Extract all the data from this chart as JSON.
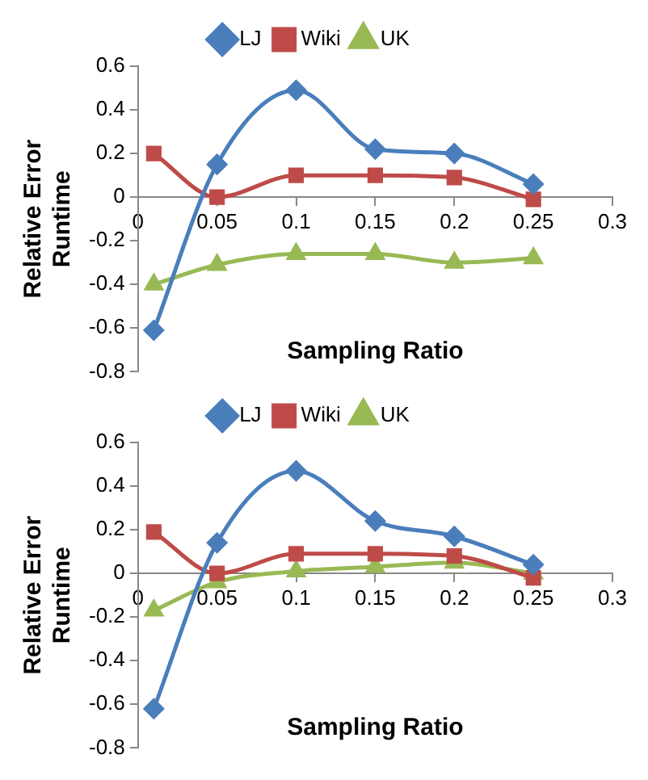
{
  "chart_data": [
    {
      "type": "line",
      "xlabel": "Sampling Ratio",
      "ylabel": "Relative Error\nRuntime",
      "x": [
        0.01,
        0.05,
        0.1,
        0.15,
        0.2,
        0.25
      ],
      "xlim": [
        0,
        0.3
      ],
      "xticks": [
        0,
        0.05,
        0.1,
        0.15,
        0.2,
        0.25,
        0.3
      ],
      "ylim": [
        -0.8,
        0.6
      ],
      "yticks": [
        -0.8,
        -0.6,
        -0.4,
        -0.2,
        0,
        0.2,
        0.4,
        0.6
      ],
      "grid": false,
      "legend": "top",
      "series": [
        {
          "name": "LJ",
          "color": "#4a7ebb",
          "marker": "diamond",
          "values": [
            -0.61,
            0.15,
            0.49,
            0.22,
            0.2,
            0.06
          ]
        },
        {
          "name": "Wiki",
          "color": "#be4b48",
          "marker": "square",
          "values": [
            0.2,
            0.0,
            0.1,
            0.1,
            0.09,
            -0.01
          ]
        },
        {
          "name": "UK",
          "color": "#98b954",
          "marker": "triangle",
          "values": [
            -0.4,
            -0.31,
            -0.26,
            -0.26,
            -0.3,
            -0.28
          ]
        }
      ]
    },
    {
      "type": "line",
      "xlabel": "Sampling Ratio",
      "ylabel": "Relative Error\nRuntime",
      "x": [
        0.01,
        0.05,
        0.1,
        0.15,
        0.2,
        0.25
      ],
      "xlim": [
        0,
        0.3
      ],
      "xticks": [
        0,
        0.05,
        0.1,
        0.15,
        0.2,
        0.25,
        0.3
      ],
      "ylim": [
        -0.8,
        0.6
      ],
      "yticks": [
        -0.8,
        -0.6,
        -0.4,
        -0.2,
        0,
        0.2,
        0.4,
        0.6
      ],
      "grid": false,
      "legend": "top",
      "series": [
        {
          "name": "LJ",
          "color": "#4a7ebb",
          "marker": "diamond",
          "values": [
            -0.62,
            0.14,
            0.47,
            0.24,
            0.17,
            0.04
          ]
        },
        {
          "name": "Wiki",
          "color": "#be4b48",
          "marker": "square",
          "values": [
            0.19,
            0.0,
            0.09,
            0.09,
            0.08,
            -0.02
          ]
        },
        {
          "name": "UK",
          "color": "#98b954",
          "marker": "triangle",
          "values": [
            -0.17,
            -0.04,
            0.01,
            0.03,
            0.05,
            0.0
          ]
        }
      ]
    }
  ]
}
